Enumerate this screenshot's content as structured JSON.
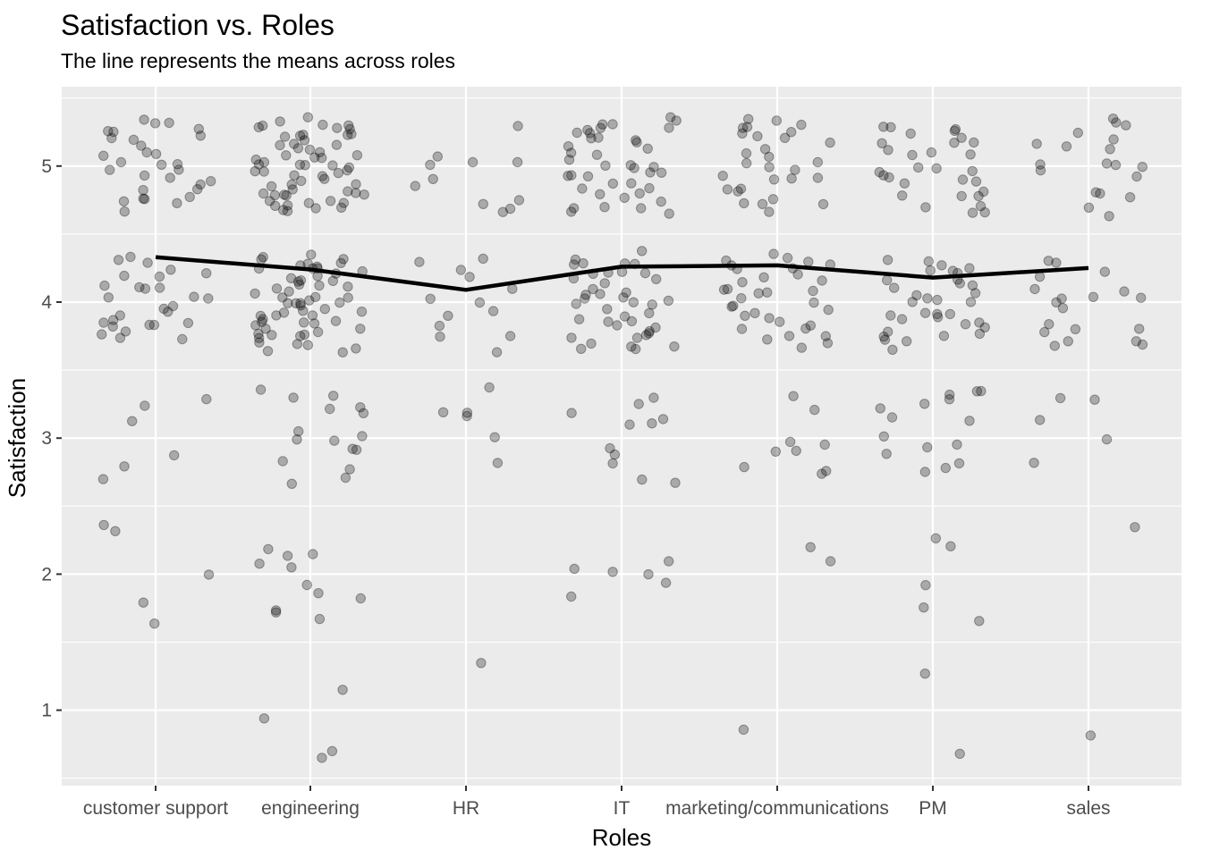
{
  "chart_data": {
    "type": "scatter",
    "title": "Satisfaction vs. Roles",
    "subtitle": "The line represents the means across roles",
    "xlabel": "Roles",
    "ylabel": "Satisfaction",
    "categories": [
      "customer support",
      "engineering",
      "HR",
      "IT",
      "marketing/communications",
      "PM",
      "sales"
    ],
    "ylim": [
      0.5,
      5.5
    ],
    "yticks": [
      1,
      2,
      3,
      4,
      5
    ],
    "grid": true,
    "point_color": "#000000",
    "point_opacity": 0.28,
    "line_color": "#000000",
    "panel_background": "#ebebeb",
    "mean_line": {
      "name": "mean",
      "values": [
        4.33,
        4.24,
        4.09,
        4.26,
        4.27,
        4.18,
        4.25
      ]
    },
    "points": [
      {
        "role": "customer support",
        "values": [
          5.3,
          5.25,
          5.2,
          5.15,
          5.3,
          5.28,
          5.32,
          5.3,
          5.22,
          5.18,
          5.1,
          5.05,
          5.08,
          5.0,
          4.98,
          4.95,
          4.9,
          4.88,
          4.92,
          4.85,
          4.82,
          4.78,
          4.75,
          4.72,
          4.7,
          4.68,
          4.8,
          4.85,
          5.02,
          5.12,
          4.32,
          4.3,
          4.25,
          4.22,
          4.2,
          4.18,
          4.15,
          4.12,
          4.1,
          4.05,
          4.02,
          4.0,
          3.98,
          3.95,
          3.92,
          3.9,
          3.88,
          3.85,
          3.82,
          3.8,
          3.78,
          3.75,
          3.72,
          3.7,
          3.85,
          3.92,
          4.08,
          4.28,
          3.3,
          3.25,
          3.15,
          2.88,
          2.78,
          2.72,
          2.33,
          2.3,
          2.0,
          1.78,
          1.66
        ]
      },
      {
        "role": "engineering",
        "values": [
          5.35,
          5.32,
          5.3,
          5.28,
          5.25,
          5.22,
          5.2,
          5.18,
          5.15,
          5.12,
          5.1,
          5.08,
          5.05,
          5.02,
          5.0,
          4.98,
          4.95,
          4.92,
          4.9,
          4.88,
          4.85,
          4.82,
          4.8,
          4.78,
          4.75,
          4.72,
          4.7,
          4.68,
          4.67,
          4.66,
          5.3,
          5.26,
          5.21,
          5.16,
          5.11,
          5.06,
          5.01,
          4.96,
          4.91,
          4.86,
          4.81,
          4.76,
          4.71,
          4.69,
          4.74,
          4.79,
          4.84,
          4.89,
          4.94,
          4.99,
          5.04,
          5.09,
          5.14,
          5.19,
          5.24,
          5.29,
          5.33,
          4.97,
          4.87,
          4.77,
          4.35,
          4.32,
          4.3,
          4.28,
          4.25,
          4.22,
          4.2,
          4.18,
          4.15,
          4.12,
          4.1,
          4.08,
          4.05,
          4.02,
          4.0,
          3.98,
          3.95,
          3.92,
          3.9,
          3.88,
          3.85,
          3.82,
          3.8,
          3.78,
          3.75,
          3.72,
          3.7,
          3.68,
          3.67,
          3.66,
          4.33,
          4.27,
          4.21,
          4.16,
          4.11,
          4.06,
          4.01,
          3.96,
          3.91,
          3.86,
          3.81,
          3.76,
          3.71,
          3.69,
          3.74,
          3.79,
          3.84,
          3.89,
          3.94,
          3.99,
          4.04,
          4.09,
          4.14,
          4.19,
          4.24,
          4.29,
          4.31,
          3.97,
          3.87,
          3.77,
          3.35,
          3.28,
          3.28,
          3.22,
          3.2,
          3.18,
          3.05,
          3.03,
          3.0,
          2.95,
          2.93,
          2.9,
          2.82,
          2.78,
          2.7,
          2.68,
          2.2,
          2.15,
          2.14,
          2.07,
          2.02,
          1.9,
          1.85,
          1.84,
          1.76,
          1.73,
          1.66,
          1.12,
          0.97,
          0.72,
          0.68
        ]
      },
      {
        "role": "HR",
        "values": [
          5.27,
          5.1,
          5.06,
          5.01,
          5.0,
          4.9,
          4.85,
          4.75,
          4.73,
          4.67,
          4.67,
          4.35,
          4.28,
          4.25,
          4.2,
          4.12,
          4.0,
          3.98,
          3.92,
          3.88,
          3.85,
          3.78,
          3.73,
          3.66,
          3.35,
          3.2,
          3.18,
          3.17,
          3.02,
          2.83,
          1.35
        ]
      },
      {
        "role": "IT",
        "values": [
          5.35,
          5.33,
          5.3,
          5.28,
          5.26,
          5.24,
          5.22,
          5.2,
          5.18,
          5.15,
          5.12,
          5.1,
          5.08,
          5.05,
          5.02,
          5.0,
          4.98,
          4.95,
          4.92,
          4.9,
          4.88,
          4.85,
          4.82,
          4.8,
          4.78,
          4.75,
          4.72,
          4.7,
          4.68,
          4.67,
          5.31,
          5.21,
          5.11,
          5.01,
          4.91,
          4.81,
          4.71,
          4.97,
          4.87,
          5.16,
          4.35,
          4.33,
          4.31,
          4.29,
          4.26,
          4.24,
          4.22,
          4.2,
          4.18,
          4.15,
          4.12,
          4.1,
          4.08,
          4.05,
          4.02,
          4.0,
          3.98,
          3.95,
          3.92,
          3.9,
          3.88,
          3.85,
          3.82,
          3.8,
          3.78,
          3.75,
          3.72,
          3.7,
          3.68,
          3.67,
          3.66,
          4.27,
          4.17,
          4.07,
          3.97,
          3.87,
          3.77,
          3.71,
          3.81,
          3.91,
          4.01,
          3.28,
          3.25,
          3.2,
          3.13,
          3.1,
          3.08,
          2.9,
          2.87,
          2.84,
          2.72,
          2.69,
          2.07,
          2.07,
          2.03,
          2.0,
          1.95,
          1.82
        ]
      },
      {
        "role": "marketing/communications",
        "values": [
          5.35,
          5.33,
          5.32,
          5.3,
          5.28,
          5.25,
          5.22,
          5.2,
          5.18,
          5.15,
          5.12,
          5.1,
          5.08,
          5.05,
          5.02,
          5.0,
          4.98,
          4.95,
          4.92,
          4.9,
          4.88,
          4.85,
          4.82,
          4.8,
          4.78,
          4.75,
          4.72,
          4.7,
          4.67,
          4.33,
          4.35,
          4.31,
          4.3,
          4.28,
          4.25,
          4.22,
          4.2,
          4.18,
          4.15,
          4.12,
          4.1,
          4.08,
          4.05,
          4.02,
          4.0,
          3.98,
          3.95,
          3.92,
          3.9,
          3.88,
          3.85,
          3.82,
          3.8,
          3.78,
          3.75,
          3.72,
          3.7,
          3.67,
          4.27,
          4.17,
          4.07,
          3.97,
          3.93,
          3.34,
          3.24,
          2.95,
          2.94,
          2.93,
          2.92,
          2.79,
          2.75,
          2.74,
          2.23,
          2.12,
          0.87
        ]
      },
      {
        "role": "PM",
        "values": [
          5.32,
          5.3,
          5.28,
          5.26,
          5.24,
          5.22,
          5.2,
          5.18,
          5.15,
          5.12,
          5.1,
          5.08,
          5.05,
          5.02,
          5.0,
          4.98,
          4.95,
          4.92,
          4.9,
          4.88,
          4.86,
          4.85,
          4.82,
          4.8,
          4.78,
          4.75,
          4.72,
          4.7,
          4.68,
          4.67,
          4.29,
          4.28,
          4.26,
          4.25,
          4.22,
          4.2,
          4.18,
          4.15,
          4.12,
          4.1,
          4.08,
          4.05,
          4.02,
          4.0,
          3.98,
          3.95,
          3.92,
          3.9,
          3.88,
          3.85,
          3.82,
          3.8,
          3.78,
          3.75,
          3.72,
          3.7,
          3.68,
          3.67,
          4.23,
          4.13,
          4.03,
          3.93,
          3.83,
          3.73,
          3.34,
          3.33,
          3.32,
          3.3,
          3.25,
          3.19,
          3.12,
          3.1,
          2.99,
          2.96,
          2.93,
          2.86,
          2.84,
          2.81,
          2.74,
          2.24,
          2.23,
          1.89,
          1.77,
          1.66,
          1.28,
          0.71
        ]
      },
      {
        "role": "sales",
        "values": [
          5.34,
          5.32,
          5.28,
          5.25,
          5.22,
          5.18,
          5.15,
          5.1,
          5.05,
          5.02,
          5.0,
          4.99,
          4.95,
          4.93,
          4.82,
          4.8,
          4.77,
          4.72,
          4.66,
          4.31,
          4.26,
          4.24,
          4.17,
          4.1,
          4.07,
          4.05,
          4.04,
          4.01,
          4.0,
          3.98,
          3.82,
          3.8,
          3.79,
          3.78,
          3.72,
          3.71,
          3.69,
          3.67,
          3.3,
          3.29,
          3.12,
          2.96,
          2.84,
          2.32,
          0.79
        ]
      }
    ]
  }
}
